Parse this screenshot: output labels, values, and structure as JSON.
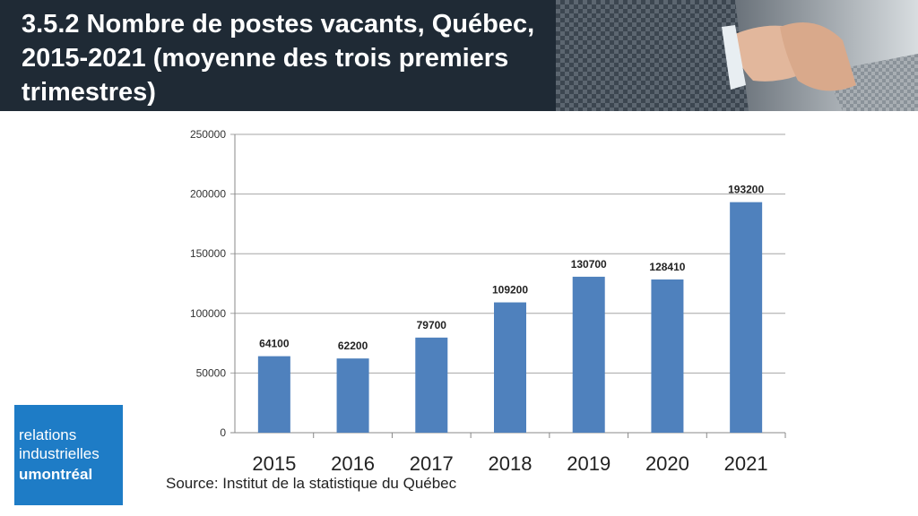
{
  "header": {
    "title": "3.5.2 Nombre de postes vacants, Québec, 2015-2021 (moyenne des trois premiers trimestres)"
  },
  "logo": {
    "line1": "relations",
    "line2": "industrielles",
    "line3_u": "u",
    "line3_rest": "montréal",
    "color": "#1e7cc6"
  },
  "source": "Source: Institut de la statistique du Québec",
  "chart_data": {
    "type": "bar",
    "categories": [
      "2015",
      "2016",
      "2017",
      "2018",
      "2019",
      "2020",
      "2021"
    ],
    "values": [
      64100,
      62200,
      79700,
      109200,
      130700,
      128410,
      193200
    ],
    "data_labels": [
      "64100",
      "62200",
      "79700",
      "109200",
      "130700",
      "128410",
      "193200"
    ],
    "yticks": [
      0,
      50000,
      100000,
      150000,
      200000,
      250000
    ],
    "ylim": [
      0,
      250000
    ],
    "grid": true,
    "bar_color": "#4f81bd",
    "title": "",
    "xlabel": "",
    "ylabel": ""
  }
}
